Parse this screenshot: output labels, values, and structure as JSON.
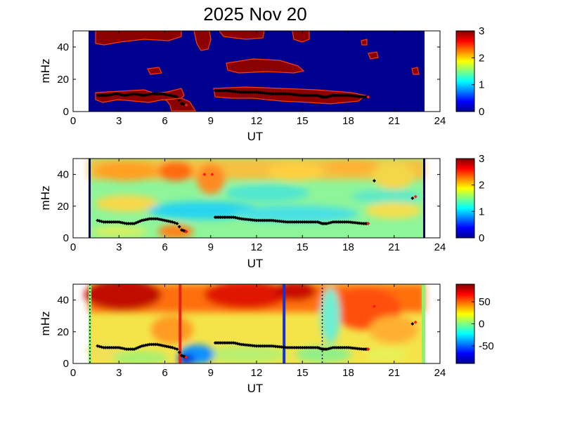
{
  "figure_title": "2025 Nov 20",
  "chart_data": [
    {
      "type": "heatmap",
      "xlabel": "UT",
      "ylabel": "mHz",
      "xlim": [
        0,
        24
      ],
      "ylim": [
        0,
        50
      ],
      "xticks": [
        "0",
        "3",
        "6",
        "9",
        "12",
        "15",
        "18",
        "21",
        "24"
      ],
      "yticks": [
        "0",
        "20",
        "40"
      ],
      "colorbar": {
        "min": 0,
        "max": 3,
        "ticks": [
          "0",
          "1",
          "2",
          "3"
        ]
      },
      "data_coverage_ut": [
        1,
        23
      ],
      "tracked_frequency": {
        "segments": [
          {
            "ut": [
              1.6,
              2.2,
              2.8,
              3.4,
              4.0,
              4.6,
              5.2,
              5.8,
              6.4,
              6.8,
              7.1,
              7.4
            ],
            "mhz": [
              10,
              10,
              11,
              10,
              11,
              10,
              11,
              11,
              10,
              9,
              5,
              4
            ]
          },
          {
            "ut": [
              9.3,
              10,
              11,
              12,
              13,
              14,
              15,
              16,
              16.3,
              16.6,
              17,
              18,
              19,
              19.3
            ],
            "mhz": [
              13,
              13,
              12,
              12,
              11,
              11,
              10,
              10,
              9,
              9,
              10,
              10,
              9,
              9
            ]
          }
        ],
        "red_markers": [
          {
            "ut": 19.3,
            "mhz": 9
          },
          {
            "ut": 7.4,
            "mhz": 4
          }
        ]
      }
    },
    {
      "type": "heatmap",
      "xlabel": "UT",
      "ylabel": "mHz",
      "xlim": [
        0,
        24
      ],
      "ylim": [
        0,
        50
      ],
      "xticks": [
        "0",
        "3",
        "6",
        "9",
        "12",
        "15",
        "18",
        "21",
        "24"
      ],
      "yticks": [
        "0",
        "20",
        "40"
      ],
      "colorbar": {
        "min": 0,
        "max": 3,
        "ticks": [
          "0",
          "1",
          "2",
          "3"
        ]
      },
      "data_coverage_ut": [
        1,
        23
      ],
      "tracked_frequency": {
        "segments": [
          {
            "ut": [
              1.6,
              2.0,
              2.5,
              3.0,
              3.5,
              4.0,
              4.5,
              5.0,
              5.5,
              6.0,
              6.5,
              6.8,
              7.1,
              7.4
            ],
            "mhz": [
              11,
              10,
              10,
              10,
              9,
              9,
              11,
              12,
              12,
              11,
              10,
              9,
              5,
              4
            ]
          },
          {
            "ut": [
              9.3,
              10,
              10.5,
              11,
              12,
              13,
              14,
              15,
              16,
              16.3,
              16.6,
              17,
              18,
              19,
              19.3
            ],
            "mhz": [
              13,
              13,
              13,
              12,
              11,
              11,
              10,
              10,
              10,
              9,
              9,
              10,
              10,
              9,
              9
            ]
          }
        ],
        "red_markers": [
          {
            "ut": 8.6,
            "mhz": 40
          },
          {
            "ut": 9.1,
            "mhz": 40
          },
          {
            "ut": 7.4,
            "mhz": 4
          },
          {
            "ut": 19.3,
            "mhz": 9
          },
          {
            "ut": 22.4,
            "mhz": 26
          }
        ],
        "black_markers": [
          {
            "ut": 19.7,
            "mhz": 36
          },
          {
            "ut": 22.2,
            "mhz": 25
          }
        ]
      }
    },
    {
      "type": "heatmap",
      "xlabel": "UT",
      "ylabel": "mHz",
      "xlim": [
        0,
        24
      ],
      "ylim": [
        0,
        50
      ],
      "xticks": [
        "0",
        "3",
        "6",
        "9",
        "12",
        "15",
        "18",
        "21",
        "24"
      ],
      "yticks": [
        "0",
        "20",
        "40"
      ],
      "colorbar": {
        "min": -90,
        "max": 90,
        "ticks": [
          "50",
          "0",
          "-50"
        ]
      },
      "data_coverage_ut": [
        1,
        23
      ],
      "vertical_lines": [
        {
          "ut": 7.0,
          "color": "#e4231d",
          "style": "solid"
        },
        {
          "ut": 13.8,
          "color": "#1d31c8",
          "style": "solid"
        },
        {
          "ut": 1.1,
          "color": "#000000",
          "style": "dotted"
        },
        {
          "ut": 16.3,
          "color": "#000000",
          "style": "dotted"
        }
      ],
      "tracked_frequency": {
        "segments": [
          {
            "ut": [
              1.6,
              2.0,
              2.5,
              3.0,
              3.5,
              4.0,
              4.5,
              5.0,
              5.5,
              6.0,
              6.5,
              6.8,
              7.1,
              7.4
            ],
            "mhz": [
              11,
              10,
              10,
              10,
              9,
              9,
              11,
              12,
              12,
              11,
              10,
              9,
              5,
              4
            ]
          },
          {
            "ut": [
              9.3,
              10,
              10.5,
              11,
              12,
              13,
              14,
              15,
              16,
              16.3,
              16.6,
              17,
              18,
              19,
              19.3
            ],
            "mhz": [
              13,
              13,
              13,
              12,
              11,
              11,
              10,
              10,
              10,
              9,
              9,
              10,
              10,
              9,
              9
            ]
          }
        ],
        "red_markers": [
          {
            "ut": 7.4,
            "mhz": 4
          },
          {
            "ut": 19.3,
            "mhz": 9
          },
          {
            "ut": 22.4,
            "mhz": 26
          },
          {
            "ut": 19.7,
            "mhz": 36
          }
        ],
        "black_markers": [
          {
            "ut": 22.2,
            "mhz": 25
          }
        ]
      }
    }
  ]
}
